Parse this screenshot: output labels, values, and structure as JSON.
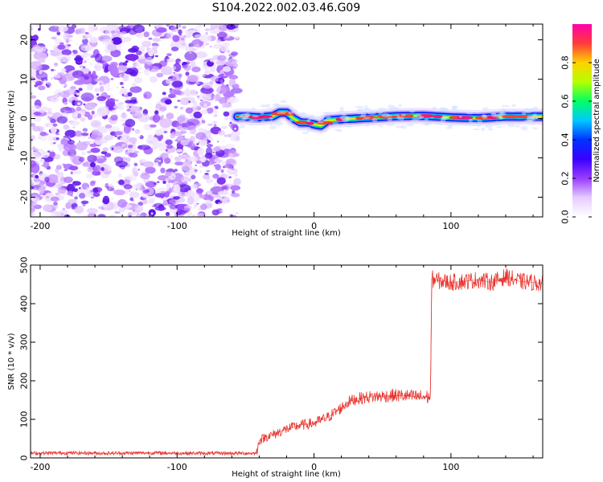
{
  "figure_title": "S104.2022.002.03.46.G09",
  "chart_data": [
    {
      "type": "heatmap",
      "xlabel": "Height of straight line (km)",
      "ylabel": "Frequency (Hz)",
      "xlim": [
        -207,
        167
      ],
      "ylim": [
        -25,
        24
      ],
      "xticks": [
        -200,
        -100,
        0,
        100
      ],
      "yticks": [
        -20,
        -10,
        0,
        10,
        20
      ],
      "noise_region": {
        "x_from": -207,
        "x_to": -56
      },
      "signal_track": {
        "description": "narrow band of high spectral amplitude near 0 Hz",
        "x": [
          -56,
          -50,
          -40,
          -30,
          -25,
          -20,
          -15,
          -10,
          -5,
          0,
          5,
          10,
          20,
          40,
          60,
          80,
          100,
          120,
          140,
          167
        ],
        "y": [
          0.5,
          0.5,
          0.3,
          0.6,
          1.5,
          1.5,
          0,
          -1,
          -1,
          -1.5,
          -1.8,
          -0.5,
          -0.2,
          0.2,
          0.6,
          0.7,
          0.3,
          0.1,
          0.5,
          0.5
        ]
      },
      "colorbar": {
        "label": "Normalized spectral amplitude",
        "ticks": [
          "0.0",
          "0.2",
          "0.4",
          "0.6",
          "0.8"
        ],
        "range": [
          0,
          1
        ],
        "colors": [
          "#ffffff",
          "#e6ccff",
          "#9a3cff",
          "#3a00ff",
          "#0033ff",
          "#00c8ff",
          "#00ff66",
          "#b4ff00",
          "#ffd200",
          "#ff3b3b",
          "#ff00aa"
        ]
      }
    },
    {
      "type": "line",
      "xlabel": "Height of straight line (km)",
      "ylabel": "SNR (10 * v/v)",
      "xlim": [
        -207,
        167
      ],
      "ylim": [
        0,
        500
      ],
      "xticks": [
        -200,
        -100,
        0,
        100
      ],
      "yticks": [
        0,
        100,
        200,
        300,
        400,
        500
      ],
      "color": "#e8352e",
      "series": [
        {
          "x": [
            -207,
            -180,
            -150,
            -120,
            -90,
            -60,
            -42,
            -40,
            -35,
            -30,
            -20,
            -10,
            0,
            10,
            20,
            25,
            30,
            40,
            50,
            60,
            70,
            80,
            85,
            86,
            90,
            100,
            110,
            120,
            130,
            140,
            150,
            160,
            167
          ],
          "y": [
            12,
            13,
            12,
            13,
            12,
            12,
            12,
            45,
            55,
            60,
            75,
            85,
            90,
            105,
            130,
            145,
            152,
            158,
            160,
            162,
            160,
            158,
            158,
            465,
            460,
            455,
            458,
            462,
            455,
            470,
            458,
            455,
            452
          ]
        }
      ]
    }
  ]
}
